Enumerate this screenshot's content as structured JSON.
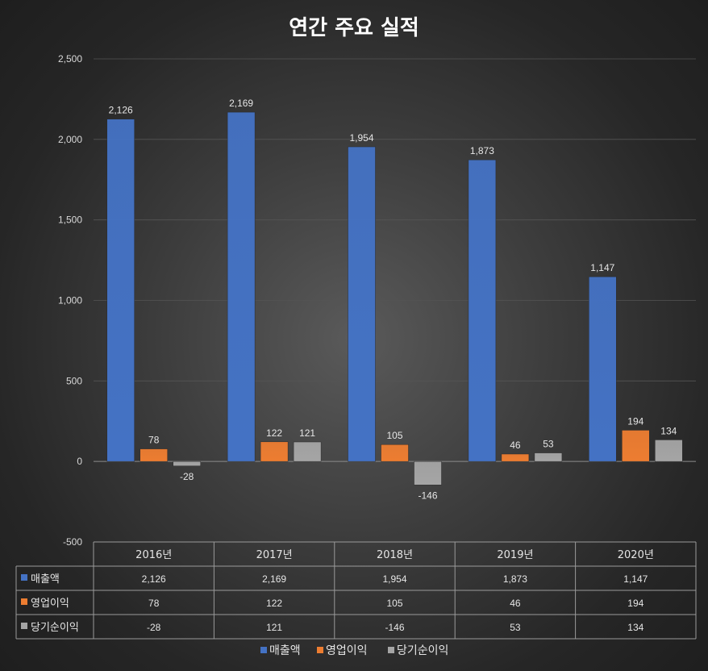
{
  "chart_data": {
    "type": "bar",
    "title": "연간 주요 실적",
    "categories": [
      "2016년",
      "2017년",
      "2018년",
      "2019년",
      "2020년"
    ],
    "series": [
      {
        "name": "매출액",
        "values": [
          2126,
          2169,
          1954,
          1873,
          1147
        ],
        "color": "#4472c4"
      },
      {
        "name": "영업이익",
        "values": [
          78,
          122,
          105,
          46,
          194
        ],
        "color": "#ed7d31"
      },
      {
        "name": "당기순이익",
        "values": [
          -28,
          121,
          -146,
          53,
          134
        ],
        "color": "#a5a5a5"
      }
    ],
    "ylim": [
      -500,
      2500
    ],
    "yticks": [
      2500,
      2000,
      1500,
      1000,
      500,
      0,
      -500
    ],
    "ytick_labels": [
      "2,500",
      "2,000",
      "1,500",
      "1,000",
      "500",
      "0",
      "-500"
    ],
    "data_labels": [
      [
        "2,126",
        "2,169",
        "1,954",
        "1,873",
        "1,147"
      ],
      [
        "78",
        "122",
        "105",
        "46",
        "194"
      ],
      [
        "-28",
        "121",
        "-146",
        "53",
        "134"
      ]
    ],
    "grid": true,
    "legend_position": "bottom",
    "data_table": true
  }
}
